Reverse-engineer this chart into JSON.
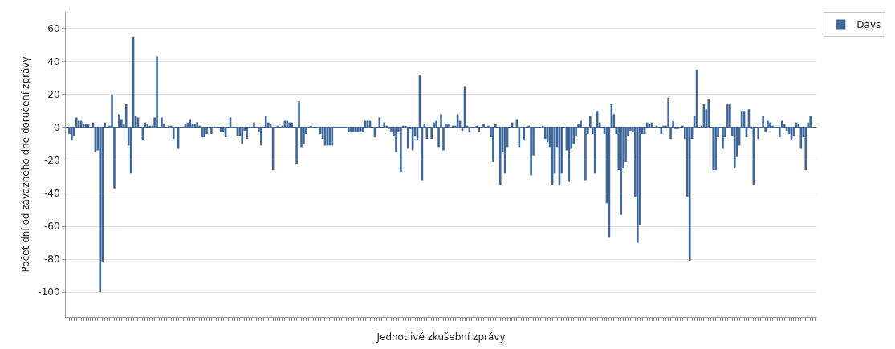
{
  "chart_data": {
    "type": "bar",
    "xlabel": "Jednotlivé zkušební zprávy",
    "ylabel": "Počet dní od závazného dne doručení zprávy",
    "categories": [
      null,
      null,
      null,
      null,
      null,
      null,
      null,
      null,
      null,
      null,
      null,
      null,
      null,
      null,
      null,
      null,
      null,
      null,
      null,
      null,
      null,
      null,
      null,
      null,
      null,
      null,
      null,
      null,
      null,
      null,
      null,
      null,
      null,
      null,
      null,
      null,
      null,
      null,
      null,
      null,
      null,
      null,
      null,
      null,
      null,
      null,
      null,
      null,
      null,
      null,
      null,
      null,
      null,
      null,
      null,
      null,
      null,
      null,
      null,
      null,
      null,
      null,
      null,
      null,
      null,
      null,
      null,
      null,
      null,
      null,
      null,
      null,
      null,
      null,
      null,
      null,
      null,
      null,
      null,
      null,
      null,
      null,
      null,
      null,
      null,
      null,
      null,
      null,
      null,
      null,
      null,
      null,
      null,
      null,
      null,
      null,
      null,
      null,
      null,
      null,
      null,
      null,
      null,
      null,
      null,
      null,
      null,
      null,
      null,
      null,
      null,
      null,
      null,
      null,
      null,
      null,
      null,
      null,
      null,
      null,
      null,
      null,
      null,
      null,
      null,
      null,
      null,
      null,
      null,
      null,
      null,
      null,
      null,
      null,
      null,
      null,
      null,
      null,
      null,
      null,
      null,
      null,
      null,
      null,
      null,
      null,
      null,
      null,
      null,
      null,
      null,
      null,
      null,
      null,
      null,
      null,
      null,
      null,
      null,
      null,
      null,
      null,
      null,
      null,
      null,
      null,
      null,
      null,
      null,
      null,
      null,
      null,
      null,
      null,
      null,
      null,
      null,
      null,
      null,
      null,
      null,
      null,
      null,
      null,
      null,
      null,
      null,
      null,
      null,
      null,
      null,
      null,
      null,
      null,
      null,
      null,
      null,
      null,
      null,
      null,
      null,
      null,
      null,
      null,
      null,
      null,
      null,
      null,
      null,
      null,
      null,
      null,
      null,
      null,
      null,
      null,
      null,
      null,
      null,
      null,
      null,
      null,
      null,
      null,
      null,
      null,
      null,
      null,
      null,
      null,
      null,
      null,
      null,
      null,
      null,
      null,
      null,
      null,
      null,
      null,
      null,
      null,
      null,
      null,
      null,
      null,
      null,
      null,
      null,
      null,
      null,
      null,
      null,
      null,
      null,
      null,
      null,
      null,
      null,
      null,
      null,
      null,
      null,
      null,
      null,
      null,
      null,
      null,
      null,
      null,
      null,
      null,
      null,
      null,
      null,
      null,
      null,
      null,
      null,
      null,
      null,
      null,
      null,
      null,
      null,
      null,
      null,
      null,
      null,
      null,
      null,
      null,
      null,
      null,
      null,
      null,
      null,
      null,
      null,
      null,
      null,
      null,
      null,
      null,
      null,
      null,
      null,
      null,
      null,
      null,
      null,
      null,
      null,
      null,
      null,
      null,
      null
    ],
    "series": [
      {
        "name": "Days",
        "color": "#3d6699",
        "values": [
          0,
          -4,
          -8,
          -5,
          6,
          4,
          4,
          2,
          2,
          2,
          0,
          3,
          -15,
          -14,
          -100,
          -82,
          3,
          0,
          1,
          20,
          -37,
          0,
          8,
          5,
          2,
          14,
          -11,
          -28,
          55,
          7,
          6,
          0,
          -8,
          3,
          2,
          1,
          1,
          6,
          43,
          0,
          6,
          2,
          0,
          1,
          1,
          -7,
          0,
          -13,
          0,
          0,
          2,
          3,
          5,
          2,
          2,
          3,
          1,
          -6,
          -6,
          -4,
          0,
          -4,
          0,
          0,
          0,
          -3,
          -3,
          -6,
          0,
          6,
          0,
          0,
          -5,
          -5,
          -10,
          -2,
          -7,
          0,
          0,
          3,
          0,
          -3,
          -11,
          0,
          7,
          3,
          2,
          -26,
          0,
          1,
          0,
          1,
          4,
          4,
          3,
          3,
          0,
          -22,
          16,
          -12,
          -10,
          -4,
          0,
          1,
          0,
          0,
          0,
          -4,
          -7,
          -11,
          -11,
          -11,
          -11,
          0,
          0,
          0,
          0,
          0,
          0,
          -3,
          -3,
          -3,
          -3,
          -3,
          -3,
          -3,
          4,
          4,
          4,
          0,
          -6,
          0,
          6,
          0,
          3,
          1,
          -1,
          -3,
          -5,
          -15,
          -3,
          -27,
          1,
          1,
          -13,
          -1,
          -14,
          -5,
          -8,
          32,
          -32,
          2,
          -7,
          0,
          -7,
          3,
          4,
          -12,
          8,
          -14,
          2,
          2,
          0,
          1,
          1,
          8,
          4,
          -2,
          25,
          1,
          -3,
          0,
          0,
          1,
          -3,
          0,
          2,
          0,
          1,
          -6,
          -21,
          2,
          0,
          -35,
          -15,
          -28,
          -12,
          0,
          3,
          0,
          5,
          -12,
          0,
          -8,
          0,
          1,
          -29,
          -17,
          0,
          0,
          0,
          1,
          -7,
          -9,
          -12,
          -35,
          -28,
          -12,
          -35,
          -28,
          0,
          -14,
          -33,
          -13,
          -10,
          -5,
          2,
          4,
          0,
          -32,
          -4,
          7,
          -4,
          -28,
          10,
          3,
          0,
          -4,
          -46,
          -67,
          14,
          8,
          -4,
          -26,
          -53,
          -25,
          -21,
          -5,
          -2,
          -3,
          -42,
          -70,
          -59,
          -4,
          -4,
          3,
          2,
          3,
          0,
          1,
          0,
          -4,
          1,
          1,
          18,
          -7,
          4,
          -1,
          -1,
          0,
          1,
          -7,
          -42,
          -81,
          -7,
          7,
          35,
          0,
          1,
          14,
          11,
          17,
          0,
          -26,
          -26,
          -6,
          0,
          -13,
          -6,
          14,
          14,
          -5,
          -25,
          -18,
          -11,
          10,
          10,
          -6,
          11,
          -1,
          -35,
          0,
          -7,
          0,
          7,
          -3,
          4,
          3,
          1,
          0,
          0,
          -6,
          4,
          2,
          -2,
          -4,
          -8,
          -5,
          3,
          2,
          -13,
          -6,
          -26,
          3,
          7,
          0,
          0
        ]
      }
    ],
    "ylim": [
      -115,
      70
    ],
    "yticks": [
      -100,
      -80,
      -60,
      -40,
      -20,
      0,
      20,
      40,
      60
    ],
    "grid": "y",
    "legend": "top right"
  }
}
